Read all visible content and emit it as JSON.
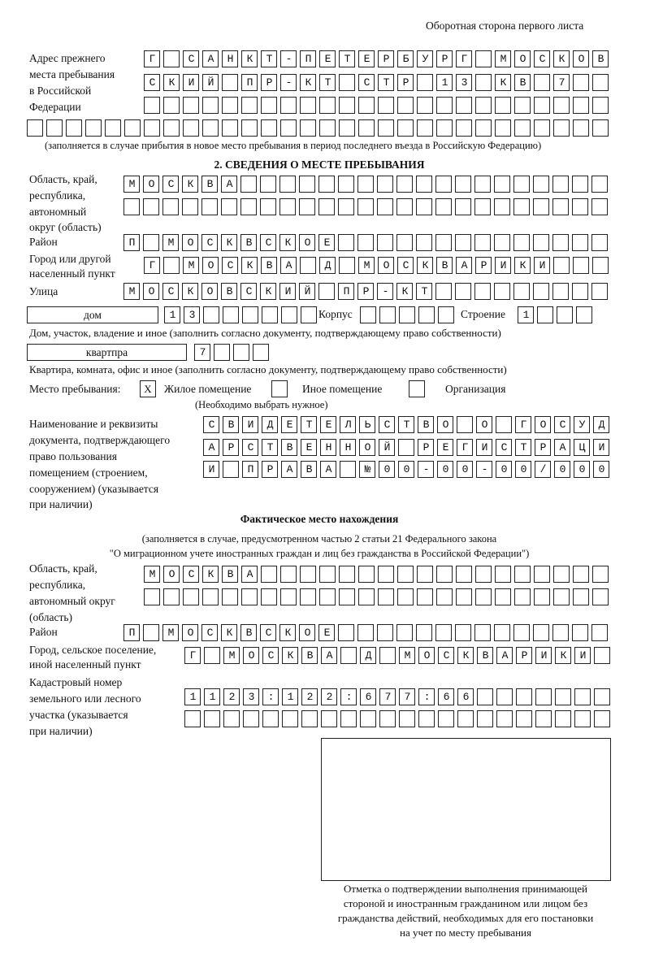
{
  "header": "Оборотная сторона первого листа",
  "prev_address": {
    "label": [
      "Адрес прежнего",
      "места пребывания",
      "в Российской",
      "Федерации"
    ],
    "rows": [
      "Г САНКТ-ПЕТЕРБУРГ МОСКОВ",
      "СКИЙ ПР-КТ СТР 13 КВ 7",
      "",
      ""
    ],
    "note": "(заполняется в случае прибытия в новое место пребывания в период последнего въезда в Российскую Федерацию)"
  },
  "section2": {
    "title": "2. СВЕДЕНИЯ О МЕСТЕ ПРЕБЫВАНИЯ",
    "region_label": [
      "Область, край,",
      "республика,",
      "автономный",
      "округ (область)"
    ],
    "region_rows": [
      "МОСКВА",
      ""
    ],
    "district_label": "Район",
    "district": "П МОСКВСКОЕ",
    "city_label": [
      "Город или другой",
      "населенный пункт"
    ],
    "city": "Г МОСКВА Д МОСКВАРИКИ",
    "street_label": "Улица",
    "street": "МОСКОВСКИЙ ПР-КТ",
    "house_type": "дом",
    "house": "13",
    "korpus_label": "Корпус",
    "korpus": "",
    "building_label": "Строение",
    "building": "1",
    "house_note": "Дом, участок, владение и иное (заполнить согласно документу, подтверждающему право собственности)",
    "apt_type": "квартпра",
    "apt": "7",
    "apt_note": "Квартира, комната, офис и иное (заполнить согласно документу, подтверждающему право собственности)",
    "stay_label": "Место пребывания:",
    "stay_options": [
      {
        "label": "Жилое помещение",
        "mark": "X"
      },
      {
        "label": "Иное помещение",
        "mark": ""
      },
      {
        "label": "Организация",
        "mark": ""
      }
    ],
    "stay_note": "(Необходимо выбрать нужное)",
    "doc_label": [
      "Наименование и реквизиты",
      "документа, подтверждающего",
      "право пользования",
      "помещением (строением,",
      "сооружением) (указывается",
      "при наличии)"
    ],
    "doc_rows": [
      "СВИДЕТЕЛЬСТВО О ГОСУД",
      "АРСТВЕННОЙ РЕГИСТРАЦИ",
      "И ПРАВА №00-00-00/000"
    ]
  },
  "actual": {
    "title": "Фактическое место нахождения",
    "note": [
      "(заполняется в случае, предусмотренном частью 2 статьи 21 Федерального закона",
      "\"О миграционном учете иностранных граждан и лиц без гражданства в Российской Федерации\")"
    ],
    "region_label": [
      "Область, край,",
      "республика,",
      "автономный округ",
      "(область)"
    ],
    "region_rows": [
      "МОСКВА",
      ""
    ],
    "district_label": "Район",
    "district": "П МОСКВСКОЕ",
    "city_label": [
      "Город, сельское поселение,",
      "иной населенный пункт"
    ],
    "city": "Г МОСКВА Д МОСКВАРИКИ",
    "cadastral_label": [
      "Кадастровый номер",
      "земельного или лесного",
      "участка (указывается",
      "при наличии)"
    ],
    "cadastral_rows": [
      "1123:122:677:66",
      ""
    ]
  },
  "stamp_caption": [
    "Отметка о подтверждении выполнения принимающей",
    "стороной и иностранным гражданином или лицом без",
    "гражданства действий, необходимых для его постановки",
    "на учет по месту пребывания"
  ]
}
